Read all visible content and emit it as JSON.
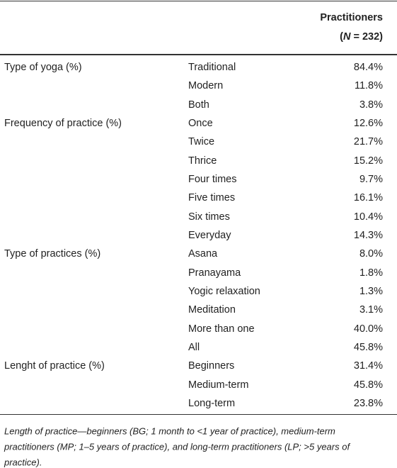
{
  "header": {
    "title": "Practitioners",
    "n_open": "(",
    "n_var": "N",
    "n_rest": " = 232)"
  },
  "groups": [
    {
      "label": "Type of yoga (%)",
      "rows": [
        [
          "Traditional",
          "84.4%"
        ],
        [
          "Modern",
          "11.8%"
        ],
        [
          "Both",
          "3.8%"
        ]
      ]
    },
    {
      "label": "Frequency of practice (%)",
      "rows": [
        [
          "Once",
          "12.6%"
        ],
        [
          "Twice",
          "21.7%"
        ],
        [
          "Thrice",
          "15.2%"
        ],
        [
          "Four times",
          "9.7%"
        ],
        [
          "Five times",
          "16.1%"
        ],
        [
          "Six times",
          "10.4%"
        ],
        [
          "Everyday",
          "14.3%"
        ]
      ]
    },
    {
      "label": "Type of practices (%)",
      "rows": [
        [
          "Asana",
          "8.0%"
        ],
        [
          "Pranayama",
          "1.8%"
        ],
        [
          "Yogic relaxation",
          "1.3%"
        ],
        [
          "Meditation",
          "3.1%"
        ],
        [
          "More than one",
          "40.0%"
        ],
        [
          "All",
          "45.8%"
        ]
      ]
    },
    {
      "label": "Lenght of practice (%)",
      "rows": [
        [
          "Beginners",
          "31.4%"
        ],
        [
          "Medium-term",
          "45.8%"
        ],
        [
          "Long-term",
          "23.8%"
        ]
      ]
    }
  ],
  "footnote": [
    "Length of practice—beginners (BG; 1 month to <1 year of practice), medium-term",
    "practitioners (MP; 1–5 years of practice), and long-term practitioners (LP; >5 years of",
    "practice)."
  ]
}
